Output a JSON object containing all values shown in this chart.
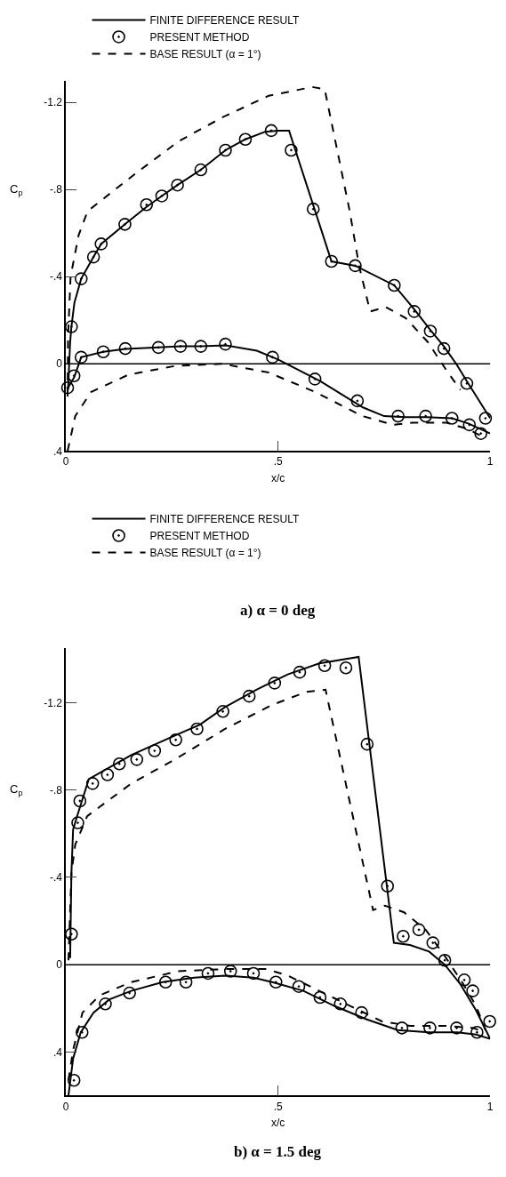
{
  "chart_data": [
    {
      "type": "line",
      "xlabel": "x/c",
      "ylabel": "C$_{p}$",
      "annotations": [
        "a) α = 0 deg"
      ],
      "legend": "top",
      "xlim": [
        0,
        1
      ],
      "xticks": [
        0,
        {
          "value": 0.5,
          "label": ".5"
        },
        1
      ],
      "ylim": [
        0.4,
        -1.3
      ],
      "yticks": [
        {
          "value": -1.2,
          "label": "-1.2"
        },
        {
          "value": -0.8,
          "label": "-.8"
        },
        {
          "value": -0.4,
          "label": "-.4"
        },
        0,
        {
          "value": 0.4,
          "label": ".4"
        }
      ],
      "ref_lines": [
        {
          "axis": "y",
          "value": 0
        }
      ],
      "series": [
        {
          "type": "line",
          "name": "FINITE DIFFERENCE RESULT",
          "color": "#000000",
          "line_style": "solid",
          "x": [
            0.005,
            0.01,
            0.013,
            0.02,
            0.036,
            0.065,
            0.083,
            0.139,
            0.19,
            0.226,
            0.263,
            0.318,
            0.376,
            0.423,
            0.47,
            0.5,
            0.526,
            0.626,
            0.682,
            0.774,
            0.821,
            0.859,
            0.891,
            0.92,
            0.945,
            1.0
          ],
          "values": [
            0.12,
            -0.1,
            -0.17,
            -0.28,
            -0.39,
            -0.49,
            -0.55,
            -0.64,
            -0.72,
            -0.77,
            -0.82,
            -0.89,
            -0.98,
            -1.03,
            -1.065,
            -1.07,
            -1.07,
            -0.47,
            -0.45,
            -0.36,
            -0.25,
            -0.155,
            -0.08,
            0,
            0.08,
            0.25
          ]
        },
        {
          "type": "line",
          "color": "#000000",
          "line_style": "solid",
          "x": [
            0.005,
            0.02,
            0.036,
            0.088,
            0.14,
            0.218,
            0.27,
            0.318,
            0.376,
            0.45,
            0.5,
            0.55,
            0.6,
            0.65,
            0.7,
            0.75,
            0.8,
            0.85,
            0.91,
            0.95,
            1.0
          ],
          "values": [
            0.11,
            0.06,
            -0.03,
            -0.055,
            -0.068,
            -0.075,
            -0.08,
            -0.08,
            -0.085,
            -0.06,
            -0.02,
            0.03,
            0.08,
            0.14,
            0.2,
            0.24,
            0.245,
            0.245,
            0.25,
            0.275,
            0.32
          ]
        },
        {
          "type": "scatter",
          "name": "PRESENT METHOD",
          "color": "#000000",
          "marker": "circle",
          "x": [
            0.013,
            0.036,
            0.065,
            0.083,
            0.139,
            0.19,
            0.226,
            0.263,
            0.318,
            0.376,
            0.423,
            0.484,
            0.531,
            0.583,
            0.626,
            0.682,
            0.774,
            0.821,
            0.859,
            0.891,
            0.945,
            0.989,
            0.004,
            0.019,
            0.036,
            0.088,
            0.14,
            0.218,
            0.27,
            0.318,
            0.376,
            0.487,
            0.587,
            0.687,
            0.783,
            0.848,
            0.91,
            0.951,
            0.978
          ],
          "values": [
            -0.17,
            -0.39,
            -0.49,
            -0.55,
            -0.64,
            -0.73,
            -0.77,
            -0.82,
            -0.89,
            -0.98,
            -1.03,
            -1.07,
            -0.98,
            -0.71,
            -0.47,
            -0.45,
            -0.36,
            -0.24,
            -0.15,
            -0.07,
            0.09,
            0.25,
            0.11,
            0.055,
            -0.03,
            -0.055,
            -0.07,
            -0.075,
            -0.08,
            -0.08,
            -0.09,
            -0.03,
            0.07,
            0.17,
            0.24,
            0.24,
            0.25,
            0.28,
            0.32
          ]
        },
        {
          "type": "line",
          "name": "BASE RESULT (α = 1°)",
          "color": "#000000",
          "line_style": "dashed",
          "x": [
            0.004,
            0.005,
            0.011,
            0.03,
            0.051,
            0.162,
            0.265,
            0.368,
            0.478,
            0.581,
            0.61,
            0.669,
            0.691,
            0.717,
            0.754,
            0.801,
            0.853,
            0.897,
            0.93
          ],
          "values": [
            0.15,
            -0.12,
            -0.4,
            -0.59,
            -0.7,
            -0.87,
            -1.02,
            -1.13,
            -1.23,
            -1.27,
            -1.26,
            -0.7,
            -0.45,
            -0.24,
            -0.26,
            -0.21,
            -0.1,
            0.03,
            0.12
          ]
        },
        {
          "type": "line",
          "color": "#000000",
          "line_style": "dashed",
          "x": [
            0.004,
            0.022,
            0.059,
            0.147,
            0.257,
            0.368,
            0.478,
            0.588,
            0.699,
            0.772,
            0.816,
            0.897,
            0.949,
            0.978
          ],
          "values": [
            0.4,
            0.24,
            0.13,
            0.05,
            0.01,
            0,
            0.04,
            0.13,
            0.24,
            0.28,
            0.27,
            0.27,
            0.3,
            0.33
          ]
        }
      ]
    },
    {
      "type": "line",
      "xlabel": "x/c",
      "ylabel": "C$_{p}$",
      "annotations": [
        "b) α = 1.5 deg"
      ],
      "legend": "top",
      "xlim": [
        0,
        1
      ],
      "xticks": [
        0,
        {
          "value": 0.5,
          "label": ".5"
        },
        1
      ],
      "ylim": [
        0.6,
        -1.45
      ],
      "yticks": [
        {
          "value": -1.2,
          "label": "-1.2"
        },
        {
          "value": -0.8,
          "label": "-.8"
        },
        {
          "value": -0.4,
          "label": "-.4"
        },
        0,
        {
          "value": 0.4,
          "label": ".4"
        }
      ],
      "ref_lines": [
        {
          "axis": "y",
          "value": 0
        }
      ],
      "series": [
        {
          "type": "line",
          "name": "FINITE DIFFERENCE RESULT",
          "color": "#000000",
          "line_style": "solid",
          "x": [
            0.01,
            0.013,
            0.017,
            0.028,
            0.054,
            0.154,
            0.257,
            0.316,
            0.375,
            0.449,
            0.523,
            0.597,
            0.69,
            0.773,
            0.811,
            0.856,
            0.893,
            0.93,
            0.967,
            1.0
          ],
          "values": [
            -0.03,
            -0.42,
            -0.62,
            -0.69,
            -0.85,
            -0.96,
            -1.05,
            -1.1,
            -1.18,
            -1.26,
            -1.33,
            -1.38,
            -1.41,
            -0.1,
            -0.09,
            -0.06,
            0,
            0.09,
            0.21,
            0.34
          ]
        },
        {
          "type": "line",
          "color": "#000000",
          "line_style": "solid",
          "x": [
            0.006,
            0.017,
            0.035,
            0.065,
            0.102,
            0.154,
            0.228,
            0.302,
            0.375,
            0.442,
            0.486,
            0.56,
            0.634,
            0.708,
            0.782,
            0.856,
            0.922,
            0.967,
            1.0
          ],
          "values": [
            0.6,
            0.43,
            0.31,
            0.22,
            0.16,
            0.12,
            0.08,
            0.06,
            0.05,
            0.06,
            0.08,
            0.12,
            0.19,
            0.25,
            0.3,
            0.31,
            0.31,
            0.32,
            0.34
          ]
        },
        {
          "type": "scatter",
          "name": "PRESENT METHOD",
          "color": "#000000",
          "marker": "circle",
          "x": [
            0.013,
            0.028,
            0.033,
            0.063,
            0.098,
            0.126,
            0.167,
            0.209,
            0.259,
            0.309,
            0.37,
            0.432,
            0.492,
            0.551,
            0.61,
            0.66,
            0.71,
            0.758,
            0.795,
            0.832,
            0.865,
            0.893,
            0.939,
            0.959,
            0.999,
            0.019,
            0.038,
            0.093,
            0.15,
            0.235,
            0.283,
            0.335,
            0.388,
            0.442,
            0.495,
            0.549,
            0.599,
            0.647,
            0.697,
            0.792,
            0.858,
            0.921,
            0.969
          ],
          "values": [
            -0.14,
            -0.65,
            -0.75,
            -0.83,
            -0.87,
            -0.92,
            -0.94,
            -0.98,
            -1.03,
            -1.08,
            -1.16,
            -1.23,
            -1.29,
            -1.34,
            -1.37,
            -1.36,
            -1.01,
            -0.36,
            -0.13,
            -0.16,
            -0.1,
            -0.02,
            0.07,
            0.12,
            0.26,
            0.53,
            0.31,
            0.18,
            0.13,
            0.08,
            0.08,
            0.04,
            0.03,
            0.04,
            0.08,
            0.1,
            0.15,
            0.18,
            0.22,
            0.29,
            0.29,
            0.29,
            0.31
          ]
        },
        {
          "type": "line",
          "name": "BASE RESULT (α = 1°)",
          "color": "#000000",
          "line_style": "dashed",
          "x": [
            0.006,
            0.013,
            0.022,
            0.05,
            0.154,
            0.257,
            0.375,
            0.486,
            0.567,
            0.612,
            0.724,
            0.752,
            0.797,
            0.848,
            0.893,
            0.937,
            0.967,
            0.989
          ],
          "values": [
            -0.02,
            -0.42,
            -0.55,
            -0.68,
            -0.83,
            -0.94,
            -1.08,
            -1.19,
            -1.25,
            -1.26,
            -0.25,
            -0.27,
            -0.24,
            -0.16,
            -0.04,
            0.09,
            0.19,
            0.3
          ]
        },
        {
          "type": "line",
          "color": "#000000",
          "line_style": "dashed",
          "x": [
            0.006,
            0.017,
            0.039,
            0.08,
            0.154,
            0.265,
            0.375,
            0.472,
            0.523,
            0.597,
            0.671,
            0.745,
            0.811,
            0.893,
            0.959,
            0.989
          ],
          "values": [
            0.53,
            0.39,
            0.22,
            0.14,
            0.08,
            0.03,
            0.02,
            0.02,
            0.05,
            0.12,
            0.19,
            0.26,
            0.28,
            0.28,
            0.29,
            0.31
          ]
        }
      ]
    }
  ]
}
